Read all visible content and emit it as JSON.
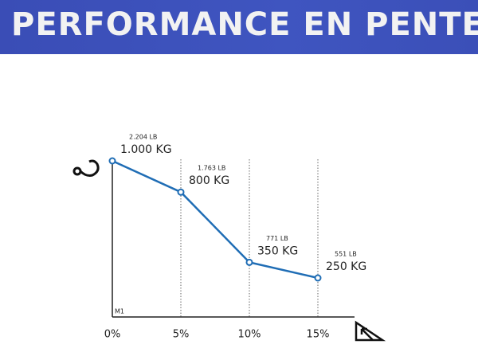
{
  "chart_data": {
    "type": "line",
    "title": "PERFORMANCE EN PENTE",
    "categories": [
      "0%",
      "5%",
      "10%",
      "15%"
    ],
    "values": [
      1000,
      800,
      350,
      250
    ],
    "value_labels": [
      "1.000 KG",
      "800 KG",
      "350 KG",
      "250 KG"
    ],
    "secondary_values": [
      2204,
      1763,
      771,
      551
    ],
    "secondary_value_labels": [
      "2.204 LB",
      "1.763 LB",
      "771 LB",
      "551 LB"
    ],
    "annotation": "M1",
    "color": "#1f6db5",
    "ylim": [
      0,
      1000
    ]
  }
}
